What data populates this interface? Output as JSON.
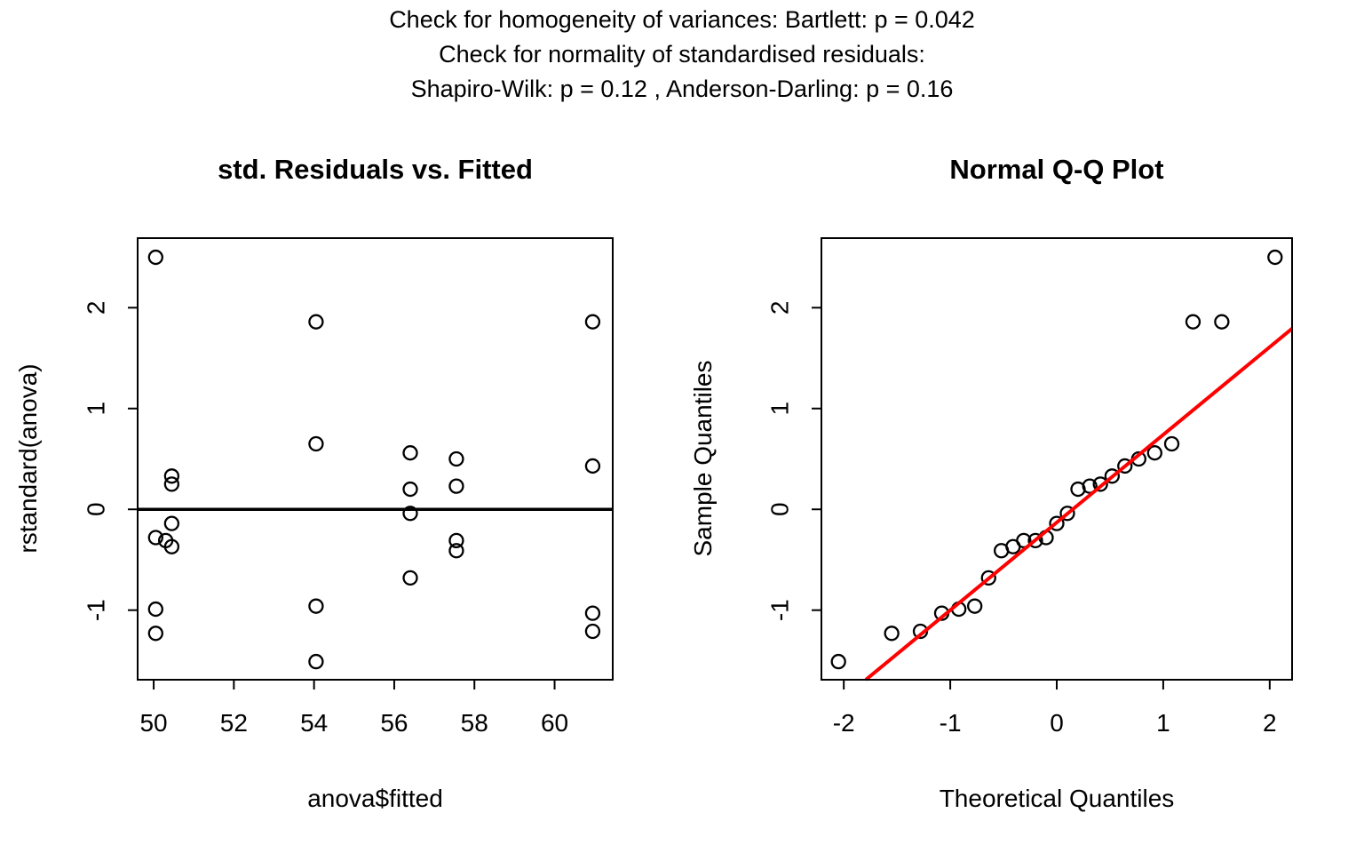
{
  "header": {
    "line1": "Check for homogeneity of variances: Bartlett: p =  0.042",
    "line2": "Check for normality of standardised residuals:",
    "line3": "Shapiro-Wilk: p =  0.12 , Anderson-Darling: p =  0.16"
  },
  "colors": {
    "foreground": "#000000",
    "background": "#FFFFFF",
    "qq_line": "#FF0000"
  },
  "chart_data": [
    {
      "type": "scatter",
      "title": "std. Residuals vs. Fitted",
      "xlabel": "anova$fitted",
      "ylabel": "rstandard(anova)",
      "xlim": [
        49.6,
        61.45
      ],
      "ylim": [
        -1.69,
        2.69
      ],
      "xticks": [
        50,
        52,
        54,
        56,
        58,
        60
      ],
      "yticks": [
        -1,
        0,
        1,
        2
      ],
      "grid": false,
      "legend": null,
      "hline": 0,
      "points": [
        [
          50.05,
          2.5
        ],
        [
          54.05,
          1.86
        ],
        [
          60.95,
          1.86
        ],
        [
          54.05,
          0.65
        ],
        [
          56.4,
          0.56
        ],
        [
          57.55,
          0.5
        ],
        [
          60.95,
          0.43
        ],
        [
          50.45,
          0.33
        ],
        [
          50.45,
          0.25
        ],
        [
          57.55,
          0.23
        ],
        [
          56.4,
          0.2
        ],
        [
          56.4,
          -0.04
        ],
        [
          50.45,
          -0.14
        ],
        [
          50.05,
          -0.28
        ],
        [
          50.3,
          -0.31
        ],
        [
          57.55,
          -0.31
        ],
        [
          50.45,
          -0.37
        ],
        [
          57.55,
          -0.41
        ],
        [
          56.4,
          -0.68
        ],
        [
          54.05,
          -0.96
        ],
        [
          50.05,
          -0.99
        ],
        [
          60.95,
          -1.03
        ],
        [
          60.95,
          -1.21
        ],
        [
          50.05,
          -1.23
        ],
        [
          54.05,
          -1.51
        ]
      ]
    },
    {
      "type": "scatter",
      "title": "Normal Q-Q Plot",
      "xlabel": "Theoretical Quantiles",
      "ylabel": "Sample Quantiles",
      "xlim": [
        -2.21,
        2.21
      ],
      "ylim": [
        -1.69,
        2.69
      ],
      "xticks": [
        -2,
        -1,
        0,
        1,
        2
      ],
      "yticks": [
        -1,
        0,
        1,
        2
      ],
      "grid": false,
      "legend": null,
      "refline": {
        "slope": 0.87,
        "intercept": -0.13
      },
      "points": [
        [
          -2.05,
          -1.51
        ],
        [
          -1.55,
          -1.23
        ],
        [
          -1.28,
          -1.21
        ],
        [
          -1.08,
          -1.03
        ],
        [
          -0.92,
          -0.99
        ],
        [
          -0.77,
          -0.96
        ],
        [
          -0.64,
          -0.68
        ],
        [
          -0.52,
          -0.41
        ],
        [
          -0.41,
          -0.37
        ],
        [
          -0.31,
          -0.31
        ],
        [
          -0.2,
          -0.31
        ],
        [
          -0.1,
          -0.28
        ],
        [
          0.0,
          -0.14
        ],
        [
          0.1,
          -0.04
        ],
        [
          0.2,
          0.2
        ],
        [
          0.31,
          0.23
        ],
        [
          0.41,
          0.25
        ],
        [
          0.52,
          0.33
        ],
        [
          0.64,
          0.43
        ],
        [
          0.77,
          0.5
        ],
        [
          0.92,
          0.56
        ],
        [
          1.08,
          0.65
        ],
        [
          1.28,
          1.86
        ],
        [
          1.55,
          1.86
        ],
        [
          2.05,
          2.5
        ]
      ]
    }
  ]
}
